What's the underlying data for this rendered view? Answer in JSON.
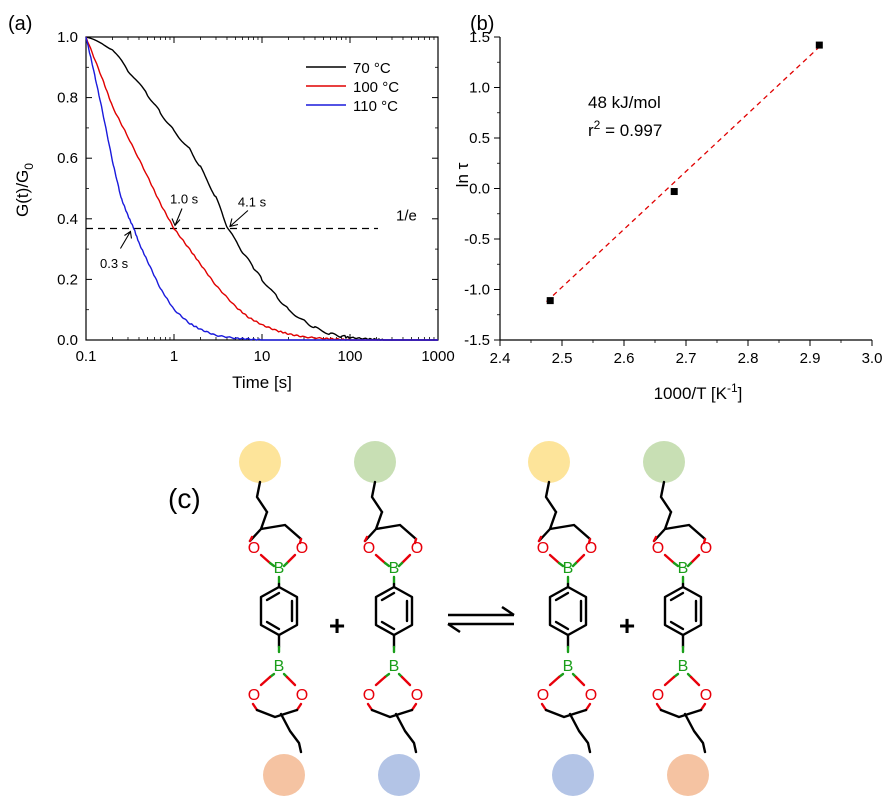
{
  "chart_data": [
    {
      "type": "line",
      "panel_label": "(a)",
      "xlabel": "Time [s]",
      "ylabel": "G(t)/G",
      "ylabel_sub": "0",
      "xscale": "log",
      "xlim": [
        0.1,
        1000
      ],
      "ylim": [
        0.0,
        1.0
      ],
      "x_ticks": [
        "0.1",
        "1",
        "10",
        "100",
        "1000"
      ],
      "y_ticks": [
        "0.0",
        "0.2",
        "0.4",
        "0.6",
        "0.8",
        "1.0"
      ],
      "legend_position": "top-right",
      "series": [
        {
          "name": "70 °C",
          "color": "#000000",
          "x": [
            0.1,
            0.2,
            0.3,
            0.5,
            0.7,
            1,
            1.5,
            2,
            3,
            4.1,
            6,
            8,
            10,
            15,
            20,
            30,
            40,
            60,
            80,
            100,
            150,
            200,
            250
          ],
          "y": [
            1.0,
            0.96,
            0.89,
            0.81,
            0.75,
            0.69,
            0.63,
            0.57,
            0.47,
            0.368,
            0.29,
            0.24,
            0.2,
            0.14,
            0.1,
            0.063,
            0.04,
            0.02,
            0.012,
            0.008,
            0.004,
            0.002,
            0.0
          ]
        },
        {
          "name": "100 °C",
          "color": "#e00000",
          "x": [
            0.1,
            0.15,
            0.2,
            0.3,
            0.5,
            0.7,
            1.0,
            1.5,
            2,
            3,
            5,
            7,
            10,
            15,
            20,
            30,
            50,
            70,
            100
          ],
          "y": [
            1.0,
            0.87,
            0.77,
            0.67,
            0.54,
            0.45,
            0.368,
            0.3,
            0.25,
            0.18,
            0.11,
            0.075,
            0.05,
            0.03,
            0.02,
            0.01,
            0.005,
            0.003,
            0.0
          ]
        },
        {
          "name": "110 °C",
          "color": "#1a1adc",
          "x": [
            0.1,
            0.12,
            0.15,
            0.2,
            0.25,
            0.3,
            0.35,
            0.4,
            0.5,
            0.7,
            1,
            1.5,
            2,
            3,
            5,
            7,
            10
          ],
          "y": [
            1.0,
            0.9,
            0.77,
            0.59,
            0.47,
            0.41,
            0.368,
            0.32,
            0.26,
            0.17,
            0.1,
            0.055,
            0.035,
            0.015,
            0.006,
            0.003,
            0.0
          ]
        }
      ],
      "reference_line": {
        "y": 0.368,
        "label": "1/e",
        "style": "dashed"
      },
      "annotations": [
        {
          "text": "0.3 s",
          "x": 0.32,
          "y": 0.368
        },
        {
          "text": "1.0 s",
          "x": 1.0,
          "y": 0.368
        },
        {
          "text": "4.1 s",
          "x": 4.1,
          "y": 0.368
        }
      ]
    },
    {
      "type": "scatter",
      "panel_label": "(b)",
      "xlabel": "1000/T [K",
      "xlabel_sup": "-1",
      "xlabel_end": "]",
      "ylabel": "ln τ",
      "xlim": [
        2.4,
        3.0
      ],
      "ylim": [
        -1.5,
        1.5
      ],
      "x_ticks": [
        "2.4",
        "2.5",
        "2.6",
        "2.7",
        "2.8",
        "2.9",
        "3.0"
      ],
      "y_ticks": [
        "-1.5",
        "-1.0",
        "-0.5",
        "0.0",
        "0.5",
        "1.0",
        "1.5"
      ],
      "points": {
        "x": [
          2.481,
          2.681,
          2.915
        ],
        "y": [
          -1.11,
          -0.03,
          1.42
        ],
        "color": "#000000"
      },
      "fit_line": {
        "x": [
          2.475,
          2.92
        ],
        "y": [
          -1.12,
          1.43
        ],
        "color": "#e00000",
        "style": "dashed"
      },
      "annotation_energy": "48 kJ/mol",
      "annotation_r2_prefix": "r",
      "annotation_r2_sup": "2",
      "annotation_r2_value": " = 0.997"
    }
  ],
  "scheme": {
    "panel_label": "(c)",
    "atom_O": "O",
    "atom_B": "B",
    "plus": "+",
    "colors": {
      "O": "#e8000b",
      "B": "#1a9e1a",
      "bond": "#000000",
      "yellow": "#fde49a",
      "green": "#c8dfb4",
      "orange": "#f5c3a2",
      "blue": "#b3c4e6"
    },
    "molecules": [
      {
        "top": "yellow",
        "bottom": "orange"
      },
      {
        "top": "green",
        "bottom": "blue"
      },
      {
        "top": "yellow",
        "bottom": "blue"
      },
      {
        "top": "green",
        "bottom": "orange"
      }
    ]
  }
}
